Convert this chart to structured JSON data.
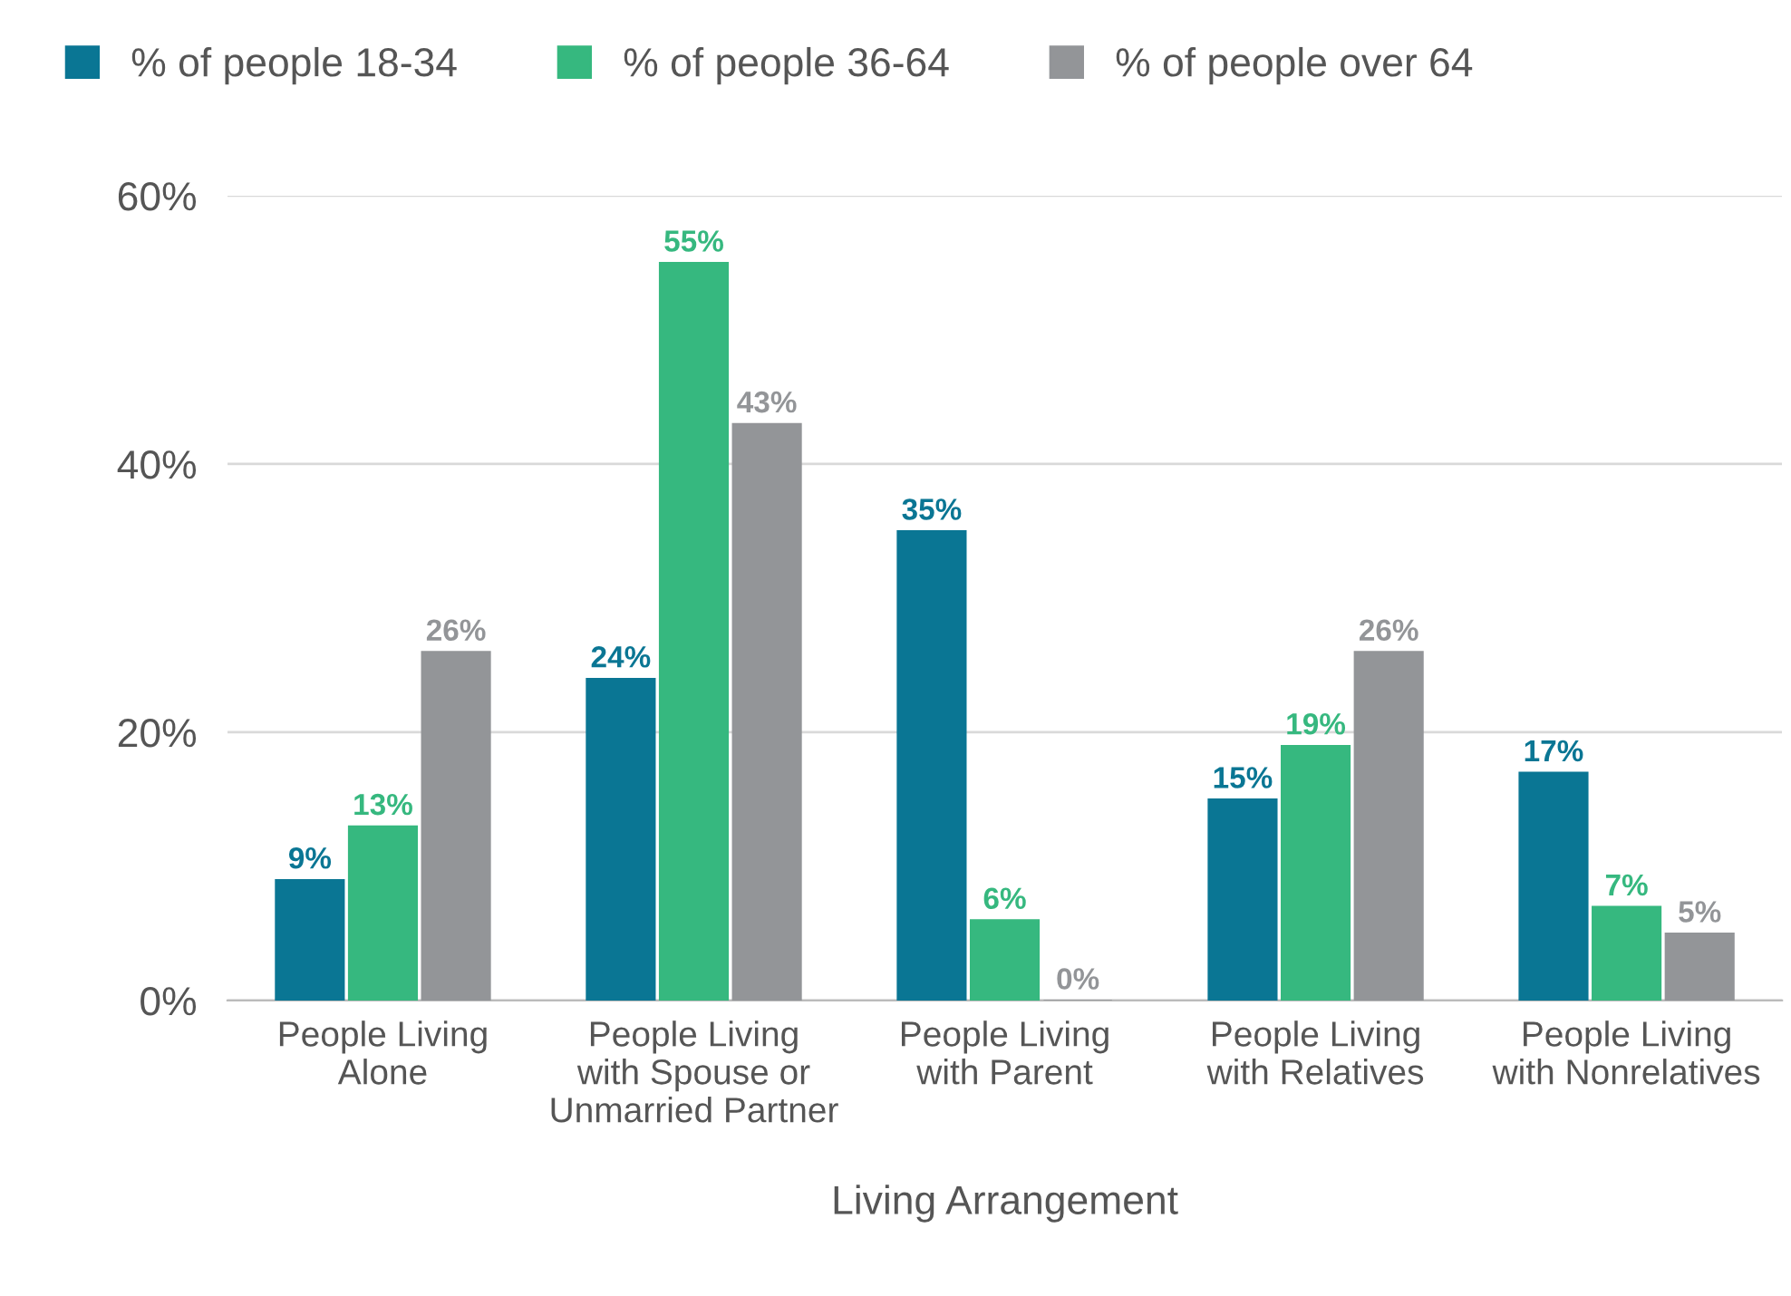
{
  "chart_data": {
    "type": "bar",
    "xlabel": "Living Arrangement",
    "categories": [
      "People Living\nAlone",
      "People Living\nwith Spouse or\nUnmarried Partner",
      "People Living\nwith Parent",
      "People Living\nwith Relatives",
      "People Living\nwith Nonrelatives"
    ],
    "series": [
      {
        "name": "% of people 18-34",
        "color": "#0a7694",
        "values": [
          9,
          24,
          35,
          15,
          17
        ],
        "value_labels": [
          "9%",
          "24%",
          "35%",
          "15%",
          "17%"
        ]
      },
      {
        "name": "% of people 36-64",
        "color": "#36b87f",
        "values": [
          13,
          55,
          6,
          19,
          7
        ],
        "value_labels": [
          "13%",
          "55%",
          "6%",
          "19%",
          "7%"
        ]
      },
      {
        "name": "% of people over 64",
        "color": "#939598",
        "values": [
          26,
          43,
          0,
          26,
          5
        ],
        "value_labels": [
          "26%",
          "43%",
          "0%",
          "26%",
          "5%"
        ]
      }
    ],
    "ylim": [
      0,
      60
    ],
    "yticks": [
      {
        "value": 0,
        "label": "0%"
      },
      {
        "value": 20,
        "label": "20%"
      },
      {
        "value": 40,
        "label": "40%"
      },
      {
        "value": 60,
        "label": "60%"
      }
    ],
    "grid": "y",
    "legend": "top left"
  }
}
